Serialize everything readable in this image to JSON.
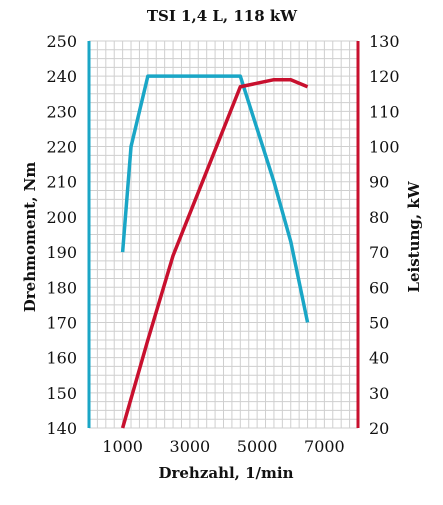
{
  "chart_data": {
    "type": "line",
    "title": "TSI  1,4 L, 118 kW",
    "xlabel": "Drehzahl, 1/min",
    "ylabel_left": "Drehmoment, Nm",
    "ylabel_right": "Leistung, kW",
    "xlim": [
      0,
      8000
    ],
    "ylim_left": [
      140,
      250
    ],
    "ylim_right": [
      20,
      130
    ],
    "x_ticks": [
      1000,
      3000,
      5000,
      7000
    ],
    "y_ticks_left": [
      140,
      150,
      160,
      170,
      180,
      190,
      200,
      210,
      220,
      230,
      240,
      250
    ],
    "y_ticks_right": [
      20,
      30,
      40,
      50,
      60,
      70,
      80,
      90,
      100,
      110,
      120,
      130
    ],
    "grid": true,
    "colors": {
      "torque": "#1aa6c6",
      "power": "#c8102e",
      "grid": "#cfcfcf"
    },
    "series": [
      {
        "axis": "left",
        "x": [
          1000,
          1250,
          1750,
          2500,
          3500,
          4500,
          5000,
          5500,
          6000,
          6500
        ],
        "values": [
          190,
          220,
          240,
          240,
          240,
          240,
          225,
          210,
          193,
          170
        ]
      },
      {
        "axis": "right",
        "x": [
          1000,
          1750,
          2500,
          3500,
          4500,
          5000,
          5500,
          6000,
          6500
        ],
        "values": [
          20,
          45,
          69,
          93,
          117,
          118,
          119,
          119,
          117
        ]
      }
    ]
  }
}
